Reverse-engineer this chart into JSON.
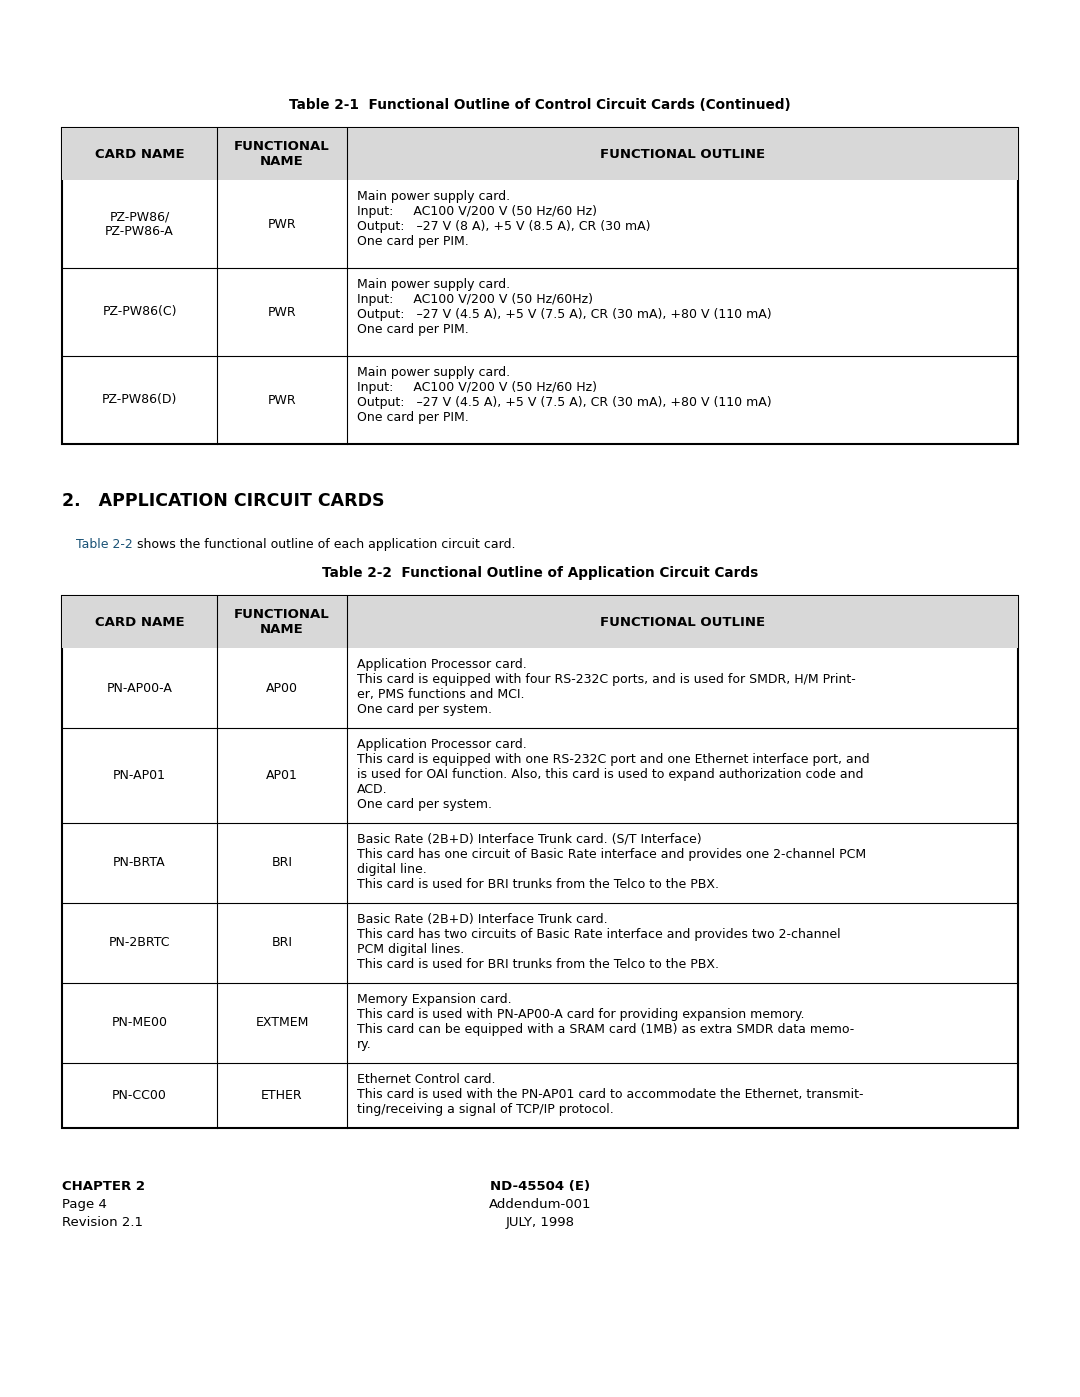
{
  "bg_color": "#ffffff",
  "text_color": "#000000",
  "link_color": "#1a5276",
  "table1_title": "Table 2-1  Functional Outline of Control Circuit Cards (Continued)",
  "table2_title": "Table 2-2  Functional Outline of Application Circuit Cards",
  "col_headers": [
    "CARD NAME",
    "FUNCTIONAL\nNAME",
    "FUNCTIONAL OUTLINE"
  ],
  "table1_rows": [
    [
      "PZ-PW86/\nPZ-PW86-A",
      "PWR",
      "Main power supply card.\nInput:     AC100 V/200 V (50 Hz/60 Hz)\nOutput:   –27 V (8 A), +5 V (8.5 A), CR (30 mA)\nOne card per PIM."
    ],
    [
      "PZ-PW86(C)",
      "PWR",
      "Main power supply card.\nInput:     AC100 V/200 V (50 Hz/60Hz)\nOutput:   –27 V (4.5 A), +5 V (7.5 A), CR (30 mA), +80 V (110 mA)\nOne card per PIM."
    ],
    [
      "PZ-PW86(D)",
      "PWR",
      "Main power supply card.\nInput:     AC100 V/200 V (50 Hz/60 Hz)\nOutput:   –27 V (4.5 A), +5 V (7.5 A), CR (30 mA), +80 V (110 mA)\nOne card per PIM."
    ]
  ],
  "table2_rows": [
    [
      "PN-AP00-A",
      "AP00",
      "Application Processor card.\nThis card is equipped with four RS-232C ports, and is used for SMDR, H/M Print-\ner, PMS functions and MCI.\nOne card per system."
    ],
    [
      "PN-AP01",
      "AP01",
      "Application Processor card.\nThis card is equipped with one RS-232C port and one Ethernet interface port, and\nis used for OAI function. Also, this card is used to expand authorization code and\nACD.\nOne card per system."
    ],
    [
      "PN-BRTA",
      "BRI",
      "Basic Rate (2B+D) Interface Trunk card. (S/T Interface)\nThis card has one circuit of Basic Rate interface and provides one 2-channel PCM\ndigital line.\nThis card is used for BRI trunks from the Telco to the PBX."
    ],
    [
      "PN-2BRTC",
      "BRI",
      "Basic Rate (2B+D) Interface Trunk card.\nThis card has two circuits of Basic Rate interface and provides two 2-channel\nPCM digital lines.\nThis card is used for BRI trunks from the Telco to the PBX."
    ],
    [
      "PN-ME00",
      "EXTMEM",
      "Memory Expansion card.\nThis card is used with PN-AP00-A card for providing expansion memory.\nThis card can be equipped with a SRAM card (1MB) as extra SMDR data memo-\nry."
    ],
    [
      "PN-CC00",
      "ETHER",
      "Ethernet Control card.\nThis card is used with the PN-AP01 card to accommodate the Ethernet, transmit-\nting/receiving a signal of TCP/IP protocol."
    ]
  ],
  "section_heading": "2.   APPLICATION CIRCUIT CARDS",
  "section_text_link": "Table 2-2",
  "section_text_rest": " shows the functional outline of each application circuit card.",
  "footer_left": [
    "CHAPTER 2",
    "Page 4",
    "Revision 2.1"
  ],
  "footer_center": [
    "ND-45504 (E)",
    "Addendum-001",
    "JULY, 1998"
  ],
  "lw_outer": 1.5,
  "lw_inner": 0.8
}
